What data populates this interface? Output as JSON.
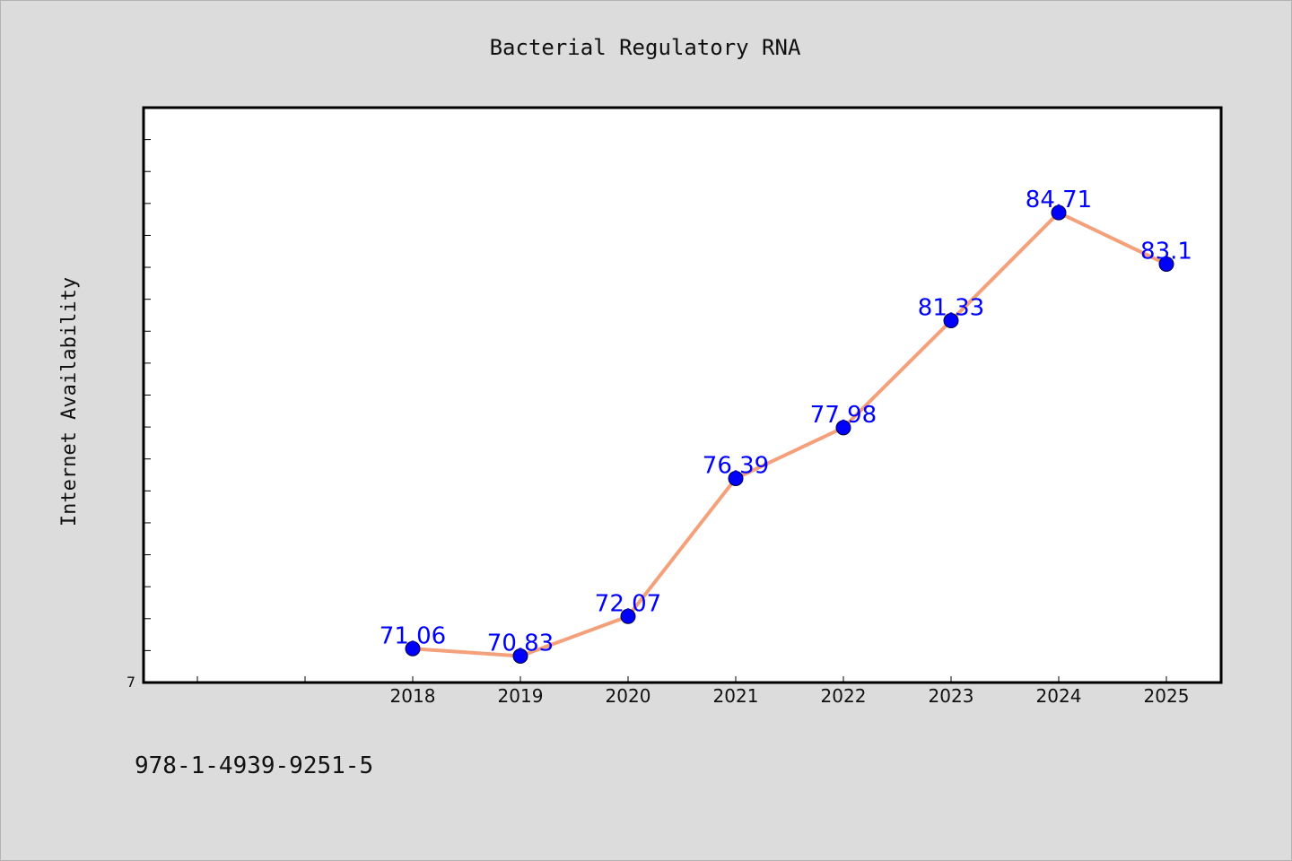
{
  "chart_data": {
    "type": "line",
    "title": "Bacterial Regulatory RNA",
    "ylabel": "Internet Availability",
    "xlabel": "",
    "categories": [
      "2018",
      "2019",
      "2020",
      "2021",
      "2022",
      "2023",
      "2024",
      "2025"
    ],
    "series": [
      {
        "values": [
          71.06,
          70.83,
          72.07,
          76.39,
          77.98,
          81.33,
          84.71,
          83.1
        ],
        "labels": [
          "71.06",
          "70.83",
          "72.07",
          "76.39",
          "77.98",
          "81.33",
          "84.71",
          "83.1"
        ]
      }
    ],
    "ylim": [
      70,
      88
    ],
    "y_tick_label": "7",
    "grid": false,
    "line_color": "#f4a07a",
    "marker_color": "#0000ff",
    "label_color": "#0000ff"
  },
  "footer": {
    "isbn": "978-1-4939-9251-5"
  }
}
